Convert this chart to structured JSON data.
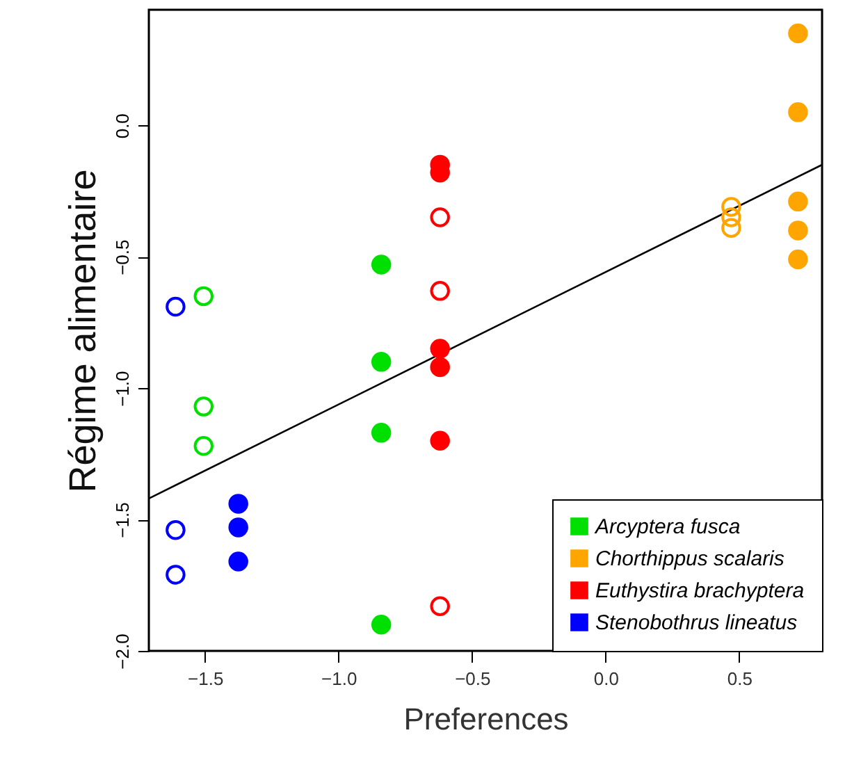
{
  "chart_data": {
    "type": "scatter",
    "xlabel": "Preferences",
    "ylabel": "Régime alimentaire",
    "xlim": [
      -1.71,
      0.81
    ],
    "ylim": [
      -2.0,
      0.44
    ],
    "xticks": [
      -1.5,
      {
        "value": -1.0,
        "label": "−1.0"
      },
      -0.5,
      {
        "value": 0.0,
        "label": "0.0"
      },
      0.5
    ],
    "yticks": [
      {
        "value": -2.0,
        "label": "−2.0"
      },
      -1.5,
      {
        "value": -1.0,
        "label": "−1.0"
      },
      -0.5,
      {
        "value": 0.0,
        "label": "0.0"
      }
    ],
    "grid": false,
    "legend": "bottom right",
    "marker": "circle",
    "series": [
      {
        "name": "Arcyptera fusca",
        "color": "#00e000",
        "x": [
          -0.84,
          -0.84,
          -0.84,
          -0.84
        ],
        "values": [
          -0.53,
          -0.9,
          -1.17,
          -1.9
        ]
      },
      {
        "name": "Chorthippus scalaris",
        "color": "#ffa500",
        "x": [
          0.72,
          0.72,
          0.72,
          0.72,
          0.72
        ],
        "values": [
          0.35,
          0.05,
          -0.29,
          -0.4,
          -0.51
        ]
      },
      {
        "name": "Euthystira brachyptera",
        "color": "#ff0000",
        "x": [
          -0.62,
          -0.62,
          -0.62,
          -0.62,
          -0.62
        ],
        "values": [
          -0.15,
          -0.18,
          -0.85,
          -0.92,
          -1.2
        ]
      },
      {
        "name": "Stenobothrus lineatus",
        "color": "#0000ff",
        "x": [
          -1.375,
          -1.375,
          -1.375
        ],
        "values": [
          -1.44,
          -1.53,
          -1.66
        ]
      },
      {
        "color": "#00e000",
        "x": [
          -1.505,
          -1.505,
          -1.505
        ],
        "values": [
          -0.65,
          -1.07,
          -1.22
        ]
      },
      {
        "color": "#ffa500",
        "x": [
          0.47,
          0.47,
          0.47
        ],
        "values": [
          -0.31,
          -0.35,
          -0.39
        ]
      },
      {
        "color": "#ff0000",
        "x": [
          -0.62,
          -0.62,
          -0.62
        ],
        "values": [
          -0.35,
          -0.63,
          -1.83
        ]
      },
      {
        "color": "#0000ff",
        "x": [
          -1.61,
          -1.61,
          -1.61
        ],
        "values": [
          -0.69,
          -1.54,
          -1.71
        ]
      },
      {
        "type": "line",
        "marker": "none",
        "color": "#000000",
        "x": [
          -1.71,
          0.81
        ],
        "values": [
          -1.42,
          -0.15
        ]
      }
    ]
  }
}
